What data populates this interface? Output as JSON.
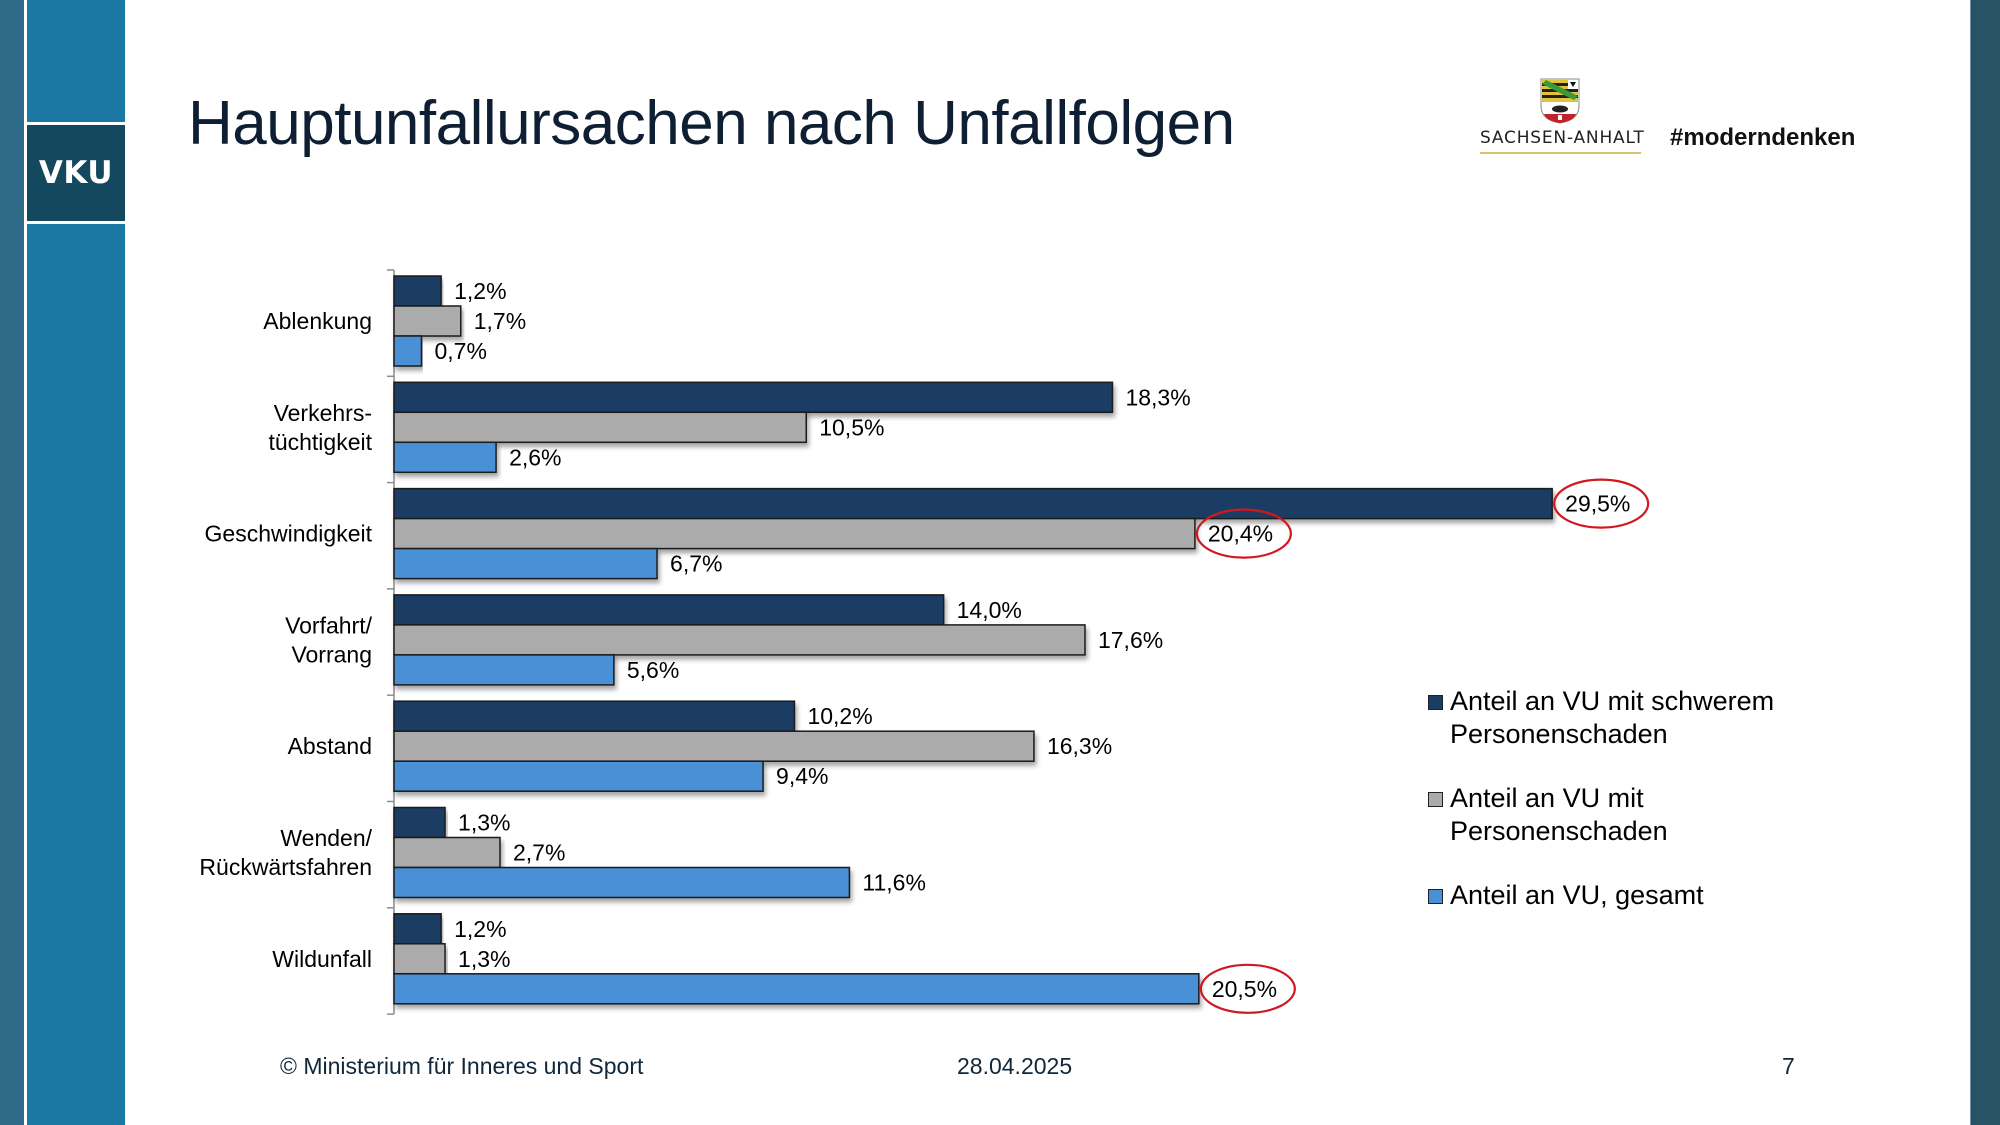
{
  "slide": {
    "brand_label": "VKU",
    "title": "Hauptunfallursachen nach Unfallfolgen",
    "logo_text": "SACHSEN-ANHALT",
    "hashtag": "#moderndenken",
    "footer": {
      "copyright": "© Ministerium für Inneres und Sport",
      "date": "28.04.2025",
      "page_number": "7"
    },
    "colors": {
      "left_strip_outer": "#2e6b89",
      "left_strip_inner": "#1b77a3",
      "brand_block": "#14485f",
      "right_strip": "#285266",
      "title_text": "#0e1f33",
      "highlight_circle": "#d0181f"
    }
  },
  "chart_data": {
    "type": "bar",
    "orientation": "horizontal",
    "title": "",
    "xlabel": "",
    "ylabel": "",
    "xlim": [
      0,
      30
    ],
    "unit": "%",
    "grid": false,
    "legend_position": "right",
    "categories": [
      "Ablenkung",
      "Verkehrs-\ntüchtigkeit",
      "Geschwindigkeit",
      "Vorfahrt/\nVorrang",
      "Abstand",
      "Wenden/\nRückwärtsfahren",
      "Wildunfall"
    ],
    "series": [
      {
        "name": "Anteil an VU mit schwerem Personenschaden",
        "color": "#1a3d63",
        "values": [
          1.2,
          18.3,
          29.5,
          14.0,
          10.2,
          1.3,
          1.2
        ],
        "labels": [
          "1,2%",
          "18,3%",
          "29,5%",
          "14,0%",
          "10,2%",
          "1,3%",
          "1,2%"
        ]
      },
      {
        "name": "Anteil an VU mit Personenschaden",
        "color": "#ababab",
        "values": [
          1.7,
          10.5,
          20.4,
          17.6,
          16.3,
          2.7,
          1.3
        ],
        "labels": [
          "1,7%",
          "10,5%",
          "20,4%",
          "17,6%",
          "16,3%",
          "2,7%",
          "1,3%"
        ]
      },
      {
        "name": "Anteil an VU, gesamt",
        "color": "#4a90d6",
        "values": [
          0.7,
          2.6,
          6.7,
          5.6,
          9.4,
          11.6,
          20.5
        ],
        "labels": [
          "0,7%",
          "2,6%",
          "6,7%",
          "5,6%",
          "9,4%",
          "11,6%",
          "20,5%"
        ]
      }
    ],
    "annotations": [
      {
        "type": "circle",
        "series": 0,
        "category": "Geschwindigkeit",
        "label": "29,5%"
      },
      {
        "type": "circle",
        "series": 1,
        "category": "Geschwindigkeit",
        "label": "20,4%"
      },
      {
        "type": "circle",
        "series": 2,
        "category": "Wildunfall",
        "label": "20,5%"
      }
    ]
  }
}
